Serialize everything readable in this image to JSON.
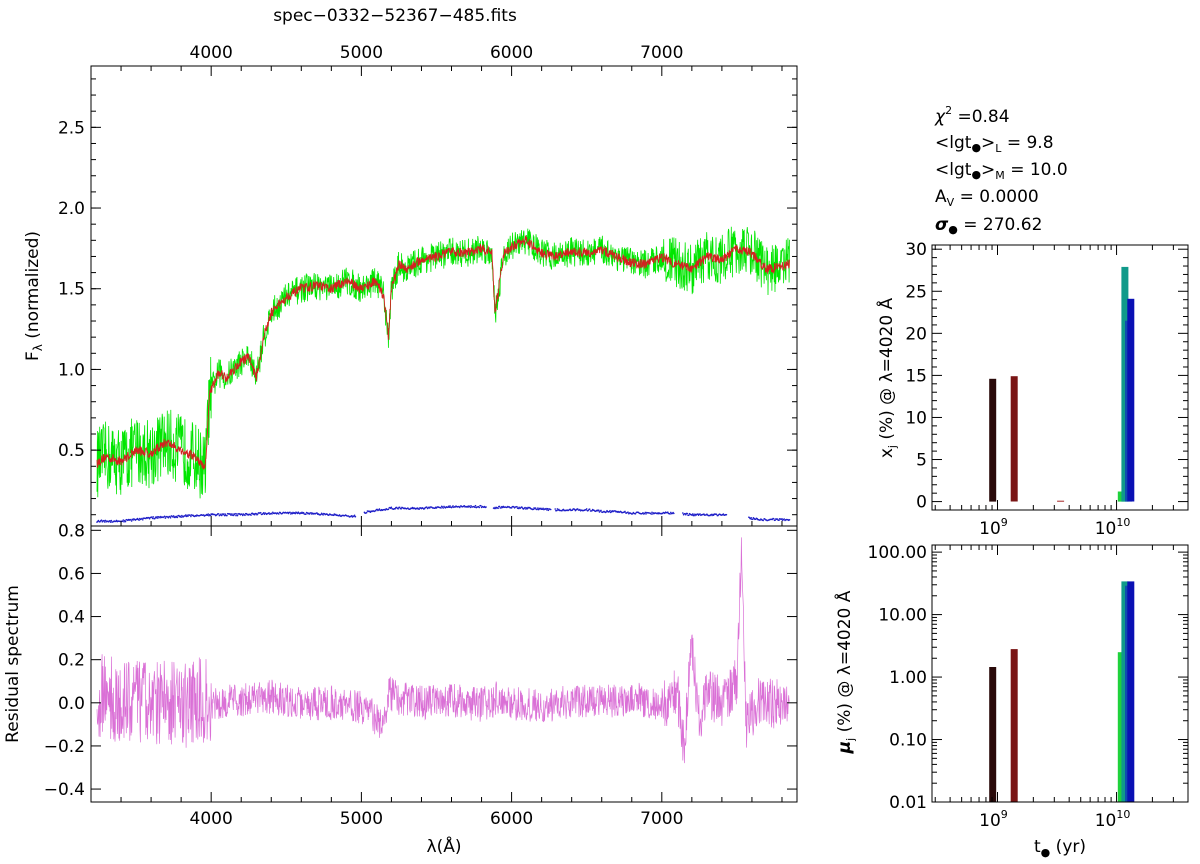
{
  "figure": {
    "file_title": "spec−0332−52367−485.fits",
    "stats": {
      "chi2_label": "χ",
      "chi2_sup": "2",
      "chi2_value": " =0.84",
      "lgt_L_label": "<lgt",
      "lgt_L_sub": "L",
      "lgt_L_value": " =  9.8",
      "lgt_M_label": "<lgt",
      "lgt_M_sub": "M",
      "lgt_M_value": " =  10.0",
      "av_label": "A",
      "av_sub": "V",
      "av_value": " =  0.0000",
      "sigma_label": "σ",
      "sigma_value": " =  270.62"
    }
  },
  "chart_data": [
    {
      "id": "spectrum",
      "type": "line",
      "title": "spec−0332−52367−485.fits",
      "ylabel": "F",
      "ylabel_sub": "λ",
      "ylabel_rest": " (normalized)",
      "xlim": [
        3200,
        7900
      ],
      "ylim": [
        0.03,
        2.88
      ],
      "xticks": [
        4000,
        5000,
        6000,
        7000
      ],
      "xtick_labels": [
        "4000",
        "5000",
        "6000",
        "7000"
      ],
      "yticks": [
        0.5,
        1.0,
        1.5,
        2.0,
        2.5
      ],
      "ytick_labels": [
        "0.5",
        "1.0",
        "1.5",
        "2.0",
        "2.5"
      ],
      "series": [
        {
          "name": "observed",
          "color": "#00e600",
          "x": [
            3240,
            3300,
            3400,
            3500,
            3600,
            3700,
            3800,
            3900,
            3960,
            3990,
            4050,
            4100,
            4150,
            4200,
            4250,
            4300,
            4350,
            4400,
            4500,
            4600,
            4700,
            4800,
            4900,
            5000,
            5100,
            5150,
            5180,
            5200,
            5250,
            5300,
            5400,
            5500,
            5600,
            5700,
            5800,
            5870,
            5890,
            5950,
            6000,
            6100,
            6200,
            6300,
            6400,
            6500,
            6600,
            6700,
            6800,
            6900,
            7000,
            7100,
            7200,
            7300,
            7400,
            7500,
            7600,
            7700,
            7800,
            7850
          ],
          "y": [
            0.42,
            0.46,
            0.43,
            0.5,
            0.48,
            0.55,
            0.5,
            0.45,
            0.38,
            0.85,
            0.98,
            0.95,
            1.0,
            1.05,
            1.08,
            0.95,
            1.2,
            1.35,
            1.45,
            1.5,
            1.52,
            1.5,
            1.55,
            1.5,
            1.55,
            1.45,
            1.2,
            1.5,
            1.65,
            1.62,
            1.68,
            1.7,
            1.73,
            1.72,
            1.75,
            1.72,
            1.35,
            1.72,
            1.76,
            1.8,
            1.72,
            1.7,
            1.73,
            1.72,
            1.74,
            1.7,
            1.66,
            1.65,
            1.7,
            1.65,
            1.62,
            1.7,
            1.68,
            1.75,
            1.72,
            1.62,
            1.64,
            1.66
          ]
        },
        {
          "name": "model",
          "color": "#d42020",
          "x": [
            3240,
            3300,
            3400,
            3500,
            3600,
            3700,
            3800,
            3900,
            3960,
            3990,
            4050,
            4100,
            4150,
            4200,
            4250,
            4300,
            4350,
            4400,
            4500,
            4600,
            4700,
            4800,
            4900,
            5000,
            5100,
            5150,
            5180,
            5200,
            5250,
            5300,
            5400,
            5500,
            5600,
            5700,
            5800,
            5870,
            5890,
            5950,
            6000,
            6100,
            6200,
            6300,
            6400,
            6500,
            6600,
            6700,
            6800,
            6900,
            7000,
            7100,
            7200,
            7300,
            7400,
            7500,
            7600,
            7700,
            7800,
            7850
          ],
          "y": [
            0.42,
            0.46,
            0.43,
            0.5,
            0.48,
            0.55,
            0.5,
            0.45,
            0.38,
            0.85,
            0.98,
            0.95,
            1.0,
            1.05,
            1.08,
            0.95,
            1.2,
            1.35,
            1.45,
            1.5,
            1.52,
            1.5,
            1.55,
            1.5,
            1.55,
            1.45,
            1.2,
            1.5,
            1.65,
            1.62,
            1.68,
            1.7,
            1.73,
            1.72,
            1.75,
            1.72,
            1.35,
            1.72,
            1.76,
            1.8,
            1.72,
            1.7,
            1.73,
            1.72,
            1.74,
            1.7,
            1.66,
            1.65,
            1.7,
            1.65,
            1.62,
            1.7,
            1.68,
            1.75,
            1.72,
            1.62,
            1.64,
            1.66
          ]
        },
        {
          "name": "error",
          "color": "#1f1fc8",
          "x": [
            3240,
            3400,
            3600,
            3800,
            4000,
            4200,
            4400,
            4600,
            4800,
            4950,
            5050,
            5200,
            5400,
            5600,
            5800,
            5880,
            5950,
            6100,
            6300,
            6500,
            6600,
            6700,
            6800,
            6900,
            7000,
            7100,
            7200,
            7300,
            7400,
            7500,
            7650,
            7750,
            7850
          ],
          "y": [
            0.06,
            0.06,
            0.08,
            0.09,
            0.1,
            0.1,
            0.11,
            0.11,
            0.1,
            0.09,
            0.12,
            0.14,
            0.14,
            0.15,
            0.15,
            0.14,
            0.15,
            0.14,
            0.13,
            0.13,
            0.12,
            0.12,
            0.11,
            0.11,
            0.11,
            0.11,
            0.1,
            0.1,
            0.1,
            0.09,
            0.07,
            0.07,
            0.07
          ]
        }
      ]
    },
    {
      "id": "residual",
      "type": "line",
      "xlabel": "λ(Å)",
      "ylabel": "Residual spectrum",
      "xlim": [
        3200,
        7900
      ],
      "ylim": [
        -0.46,
        0.82
      ],
      "xticks": [
        4000,
        5000,
        6000,
        7000
      ],
      "xtick_labels": [
        "4000",
        "5000",
        "6000",
        "7000"
      ],
      "yticks": [
        -0.4,
        -0.2,
        0.0,
        0.2,
        0.4,
        0.6,
        0.8
      ],
      "ytick_labels": [
        "−0.4",
        "−0.2",
        "0.0",
        "0.2",
        "0.4",
        "0.6",
        "0.8"
      ],
      "series": [
        {
          "name": "residual",
          "color": "#da70d6",
          "x": [
            3240,
            3300,
            3400,
            3500,
            3600,
            3700,
            3800,
            3900,
            4000,
            4200,
            4400,
            4600,
            4800,
            5000,
            5150,
            5180,
            5250,
            5400,
            5600,
            5800,
            5900,
            6000,
            6200,
            6400,
            6600,
            6800,
            7000,
            7100,
            7150,
            7200,
            7250,
            7300,
            7400,
            7500,
            7530,
            7560,
            7650,
            7750,
            7850
          ],
          "y": [
            0.0,
            0.05,
            -0.02,
            0.02,
            0.0,
            0.01,
            -0.03,
            0.02,
            0.0,
            0.01,
            0.03,
            -0.01,
            0.0,
            -0.02,
            -0.1,
            0.05,
            0.02,
            0.0,
            0.01,
            -0.01,
            0.02,
            0.0,
            -0.02,
            0.01,
            0.0,
            0.02,
            -0.01,
            0.05,
            -0.2,
            0.3,
            -0.1,
            0.05,
            0.0,
            0.1,
            0.7,
            -0.1,
            0.02,
            0.0,
            0.01
          ]
        }
      ]
    },
    {
      "id": "xj",
      "type": "bar",
      "ylabel": "x_j (%) @ λ=4020 Å",
      "xscale": "log",
      "xlim_log10": [
        8.45,
        10.6
      ],
      "ylim": [
        -1,
        30.5
      ],
      "yticks": [
        0,
        5,
        10,
        15,
        20,
        25,
        30
      ],
      "ytick_labels": [
        "0",
        "5",
        "10",
        "15",
        "20",
        "25",
        "30"
      ],
      "xtick_log10": [
        9,
        10
      ],
      "x_base_label": "10",
      "xtick_exponents": [
        "9",
        "10"
      ],
      "bars": [
        {
          "age_log10": 8.96,
          "value": 14.6,
          "color": "#2a0a0a"
        },
        {
          "age_log10": 9.14,
          "value": 14.9,
          "color": "#7a1515"
        },
        {
          "age_log10": 9.53,
          "value": 0.1,
          "color": "#a52525"
        },
        {
          "age_log10": 10.04,
          "value": 1.2,
          "color": "#1fd23c"
        },
        {
          "age_log10": 10.07,
          "value": 27.9,
          "color": "#109a8a"
        },
        {
          "age_log10": 10.1,
          "value": 21.5,
          "color": "#0e4fae"
        },
        {
          "age_log10": 10.12,
          "value": 24.1,
          "color": "#0a10b4"
        }
      ]
    },
    {
      "id": "muj",
      "type": "bar",
      "ylabel": "μ_j (%) @ λ=4020 Å",
      "xlabel": "t (yr)",
      "xscale": "log",
      "yscale": "log",
      "xlim_log10": [
        8.45,
        10.6
      ],
      "ylim": [
        0.01,
        130
      ],
      "yticks": [
        0.01,
        0.1,
        1.0,
        10.0,
        100.0
      ],
      "ytick_labels": [
        "0.01",
        "0.10",
        "1.00",
        "10.00",
        "100.00"
      ],
      "xtick_log10": [
        9,
        10
      ],
      "x_base_label": "10",
      "xtick_exponents": [
        "9",
        "10"
      ],
      "bars": [
        {
          "age_log10": 8.96,
          "value": 1.45,
          "color": "#2a0a0a"
        },
        {
          "age_log10": 9.14,
          "value": 2.8,
          "color": "#7a1515"
        },
        {
          "age_log10": 10.04,
          "value": 2.5,
          "color": "#1fd23c"
        },
        {
          "age_log10": 10.07,
          "value": 34.0,
          "color": "#109a8a"
        },
        {
          "age_log10": 10.1,
          "value": 29.0,
          "color": "#0e4fae"
        },
        {
          "age_log10": 10.12,
          "value": 34.0,
          "color": "#0a10b4"
        }
      ]
    }
  ]
}
